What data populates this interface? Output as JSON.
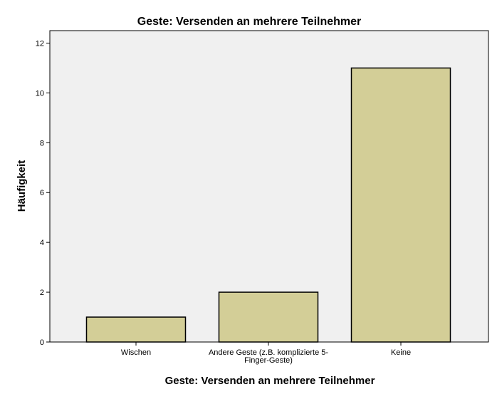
{
  "chart_data": {
    "type": "bar",
    "title": "Geste: Versenden an mehrere Teilnehmer",
    "xlabel": "Geste: Versenden an mehrere Teilnehmer",
    "ylabel": "Häufigkeit",
    "categories": [
      [
        "Wischen"
      ],
      [
        "Andere Geste (z.B. komplizierte 5-",
        "Finger-Geste)"
      ],
      [
        "Keine"
      ]
    ],
    "values": [
      1,
      2,
      11
    ],
    "ylim": [
      0,
      12.5
    ],
    "yticks": [
      "0",
      "2",
      "4",
      "6",
      "8",
      "10",
      "12"
    ],
    "grid": false,
    "legend": "none",
    "colors": {
      "plot_background": "#f0f0f0",
      "bar_fill": "#d3ce97",
      "bar_stroke": "#000000",
      "frame": "#000000"
    }
  }
}
